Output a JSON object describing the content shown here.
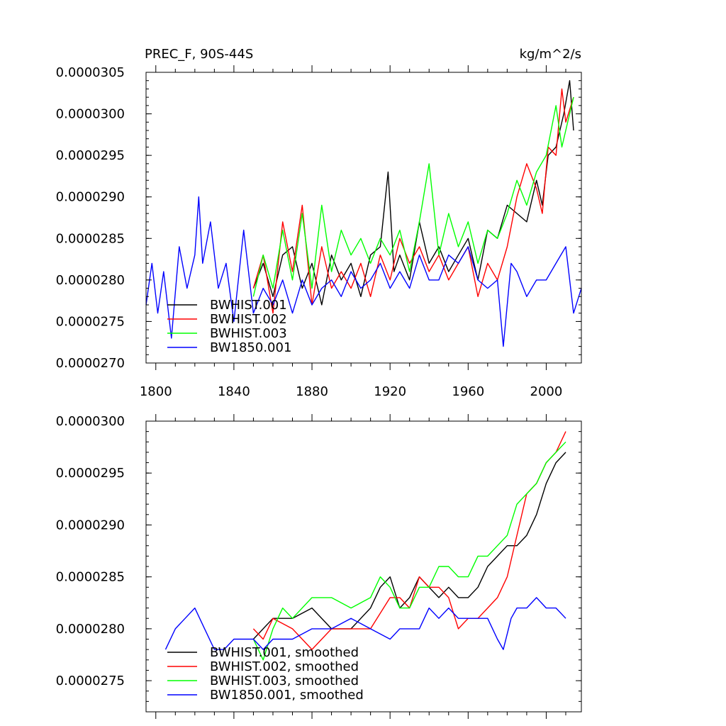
{
  "chart_data": [
    {
      "type": "line",
      "title": "PREC_F, 90S-44S",
      "units": "kg/m^2/s",
      "xlabel": "",
      "ylabel": "",
      "xlim": [
        1795,
        2018
      ],
      "ylim": [
        2.7e-05,
        3.05e-05
      ],
      "xticks": [
        1800,
        1840,
        1880,
        1920,
        1960,
        2000
      ],
      "xtick_labels": [
        "1800",
        "1840",
        "1880",
        "1920",
        "1960",
        "2000"
      ],
      "yticks": [
        2.7e-05,
        2.75e-05,
        2.8e-05,
        2.85e-05,
        2.9e-05,
        2.95e-05,
        3e-05,
        3.05e-05
      ],
      "ytick_labels": [
        "0.0000270",
        "0.0000275",
        "0.0000280",
        "0.0000285",
        "0.0000290",
        "0.0000295",
        "0.0000300",
        "0.0000305"
      ],
      "legend_position": "bottom-left",
      "grid": false,
      "series": [
        {
          "name": "BWHIST.001",
          "color": "#000000",
          "x": [
            1850,
            1855,
            1860,
            1865,
            1870,
            1875,
            1880,
            1885,
            1890,
            1895,
            1900,
            1905,
            1910,
            1915,
            1919,
            1922,
            1925,
            1930,
            1935,
            1940,
            1945,
            1950,
            1955,
            1960,
            1965,
            1970,
            1975,
            1980,
            1985,
            1990,
            1995,
            1998,
            2001,
            2005,
            2009,
            2012,
            2014
          ],
          "y": [
            2.79e-05,
            2.82e-05,
            2.78e-05,
            2.83e-05,
            2.84e-05,
            2.79e-05,
            2.82e-05,
            2.77e-05,
            2.83e-05,
            2.8e-05,
            2.82e-05,
            2.78e-05,
            2.83e-05,
            2.84e-05,
            2.93e-05,
            2.81e-05,
            2.83e-05,
            2.8e-05,
            2.87e-05,
            2.82e-05,
            2.84e-05,
            2.81e-05,
            2.83e-05,
            2.85e-05,
            2.8e-05,
            2.86e-05,
            2.85e-05,
            2.89e-05,
            2.88e-05,
            2.87e-05,
            2.92e-05,
            2.89e-05,
            2.95e-05,
            2.96e-05,
            3e-05,
            3.04e-05,
            2.98e-05
          ]
        },
        {
          "name": "BWHIST.002",
          "color": "#ff0000",
          "x": [
            1850,
            1855,
            1860,
            1865,
            1870,
            1875,
            1880,
            1885,
            1890,
            1895,
            1900,
            1905,
            1910,
            1915,
            1920,
            1925,
            1930,
            1935,
            1940,
            1945,
            1950,
            1955,
            1960,
            1965,
            1970,
            1975,
            1980,
            1985,
            1990,
            1995,
            1998,
            2001,
            2005,
            2008,
            2010,
            2014
          ],
          "y": [
            2.79e-05,
            2.83e-05,
            2.76e-05,
            2.87e-05,
            2.81e-05,
            2.89e-05,
            2.77e-05,
            2.84e-05,
            2.79e-05,
            2.81e-05,
            2.79e-05,
            2.82e-05,
            2.78e-05,
            2.83e-05,
            2.8e-05,
            2.85e-05,
            2.82e-05,
            2.84e-05,
            2.81e-05,
            2.83e-05,
            2.8e-05,
            2.82e-05,
            2.84e-05,
            2.78e-05,
            2.82e-05,
            2.8e-05,
            2.84e-05,
            2.9e-05,
            2.94e-05,
            2.91e-05,
            2.88e-05,
            2.96e-05,
            2.95e-05,
            3.03e-05,
            2.99e-05,
            3.02e-05
          ]
        },
        {
          "name": "BWHIST.003",
          "color": "#00ff00",
          "x": [
            1850,
            1855,
            1860,
            1865,
            1870,
            1875,
            1880,
            1885,
            1890,
            1895,
            1900,
            1905,
            1910,
            1915,
            1920,
            1925,
            1930,
            1935,
            1940,
            1945,
            1950,
            1955,
            1960,
            1965,
            1970,
            1975,
            1980,
            1985,
            1990,
            1995,
            2000,
            2005,
            2008,
            2011,
            2014
          ],
          "y": [
            2.78e-05,
            2.83e-05,
            2.79e-05,
            2.86e-05,
            2.8e-05,
            2.88e-05,
            2.79e-05,
            2.89e-05,
            2.81e-05,
            2.86e-05,
            2.83e-05,
            2.85e-05,
            2.82e-05,
            2.85e-05,
            2.83e-05,
            2.86e-05,
            2.81e-05,
            2.87e-05,
            2.94e-05,
            2.83e-05,
            2.88e-05,
            2.84e-05,
            2.87e-05,
            2.82e-05,
            2.86e-05,
            2.85e-05,
            2.88e-05,
            2.92e-05,
            2.89e-05,
            2.93e-05,
            2.95e-05,
            3.01e-05,
            2.96e-05,
            2.99e-05,
            3.02e-05
          ]
        },
        {
          "name": "BW1850.001",
          "color": "#0000ff",
          "x": [
            1795,
            1798,
            1801,
            1804,
            1808,
            1812,
            1816,
            1820,
            1822,
            1824,
            1828,
            1832,
            1836,
            1840,
            1845,
            1850,
            1855,
            1860,
            1865,
            1870,
            1875,
            1880,
            1885,
            1890,
            1895,
            1900,
            1905,
            1910,
            1915,
            1920,
            1925,
            1930,
            1935,
            1940,
            1945,
            1950,
            1955,
            1960,
            1965,
            1970,
            1975,
            1978,
            1982,
            1985,
            1990,
            1995,
            2000,
            2005,
            2010,
            2014,
            2018
          ],
          "y": [
            2.77e-05,
            2.82e-05,
            2.76e-05,
            2.81e-05,
            2.73e-05,
            2.84e-05,
            2.79e-05,
            2.83e-05,
            2.9e-05,
            2.82e-05,
            2.87e-05,
            2.79e-05,
            2.82e-05,
            2.75e-05,
            2.86e-05,
            2.76e-05,
            2.79e-05,
            2.77e-05,
            2.8e-05,
            2.76e-05,
            2.8e-05,
            2.77e-05,
            2.79e-05,
            2.8e-05,
            2.78e-05,
            2.81e-05,
            2.79e-05,
            2.8e-05,
            2.82e-05,
            2.79e-05,
            2.81e-05,
            2.79e-05,
            2.83e-05,
            2.8e-05,
            2.8e-05,
            2.83e-05,
            2.82e-05,
            2.84e-05,
            2.8e-05,
            2.79e-05,
            2.8e-05,
            2.72e-05,
            2.82e-05,
            2.81e-05,
            2.78e-05,
            2.8e-05,
            2.8e-05,
            2.82e-05,
            2.84e-05,
            2.76e-05,
            2.79e-05
          ]
        }
      ]
    },
    {
      "type": "line",
      "title": "",
      "xlabel": "",
      "ylabel": "",
      "xlim": [
        1795,
        2018
      ],
      "ylim": [
        2.72e-05,
        3e-05
      ],
      "xticks": [
        1800,
        1840,
        1880,
        1920,
        1960,
        2000
      ],
      "xtick_labels": [],
      "yticks": [
        2.75e-05,
        2.8e-05,
        2.85e-05,
        2.9e-05,
        2.95e-05,
        3e-05
      ],
      "ytick_labels": [
        "0.0000275",
        "0.0000280",
        "0.0000285",
        "0.0000290",
        "0.0000295",
        "0.0000300"
      ],
      "legend_position": "bottom-left",
      "grid": false,
      "series": [
        {
          "name": "BWHIST.001, smoothed",
          "color": "#000000",
          "x": [
            1850,
            1860,
            1870,
            1880,
            1890,
            1900,
            1910,
            1915,
            1920,
            1925,
            1930,
            1935,
            1940,
            1945,
            1950,
            1955,
            1960,
            1965,
            1970,
            1975,
            1980,
            1985,
            1990,
            1995,
            2000,
            2005,
            2010
          ],
          "y": [
            2.79e-05,
            2.81e-05,
            2.81e-05,
            2.82e-05,
            2.8e-05,
            2.8e-05,
            2.82e-05,
            2.84e-05,
            2.85e-05,
            2.82e-05,
            2.83e-05,
            2.85e-05,
            2.84e-05,
            2.83e-05,
            2.84e-05,
            2.83e-05,
            2.83e-05,
            2.84e-05,
            2.86e-05,
            2.87e-05,
            2.88e-05,
            2.88e-05,
            2.89e-05,
            2.91e-05,
            2.94e-05,
            2.96e-05,
            2.97e-05
          ]
        },
        {
          "name": "BWHIST.002, smoothed",
          "color": "#ff0000",
          "x": [
            1850,
            1855,
            1860,
            1870,
            1880,
            1890,
            1900,
            1910,
            1920,
            1925,
            1930,
            1935,
            1940,
            1945,
            1950,
            1955,
            1960,
            1965,
            1970,
            1975,
            1980,
            1985,
            1990,
            1995,
            2000,
            2005,
            2010
          ],
          "y": [
            2.8e-05,
            2.79e-05,
            2.81e-05,
            2.8e-05,
            2.78e-05,
            2.8e-05,
            2.8e-05,
            2.8e-05,
            2.83e-05,
            2.83e-05,
            2.82e-05,
            2.85e-05,
            2.84e-05,
            2.84e-05,
            2.83e-05,
            2.8e-05,
            2.81e-05,
            2.81e-05,
            2.82e-05,
            2.83e-05,
            2.85e-05,
            2.89e-05,
            2.93e-05,
            2.94e-05,
            2.96e-05,
            2.97e-05,
            2.99e-05
          ]
        },
        {
          "name": "BWHIST.003, smoothed",
          "color": "#00ff00",
          "x": [
            1850,
            1855,
            1860,
            1865,
            1870,
            1880,
            1890,
            1900,
            1910,
            1915,
            1920,
            1925,
            1930,
            1935,
            1940,
            1945,
            1950,
            1955,
            1960,
            1965,
            1970,
            1975,
            1980,
            1985,
            1990,
            1995,
            2000,
            2005,
            2010
          ],
          "y": [
            2.79e-05,
            2.77e-05,
            2.8e-05,
            2.82e-05,
            2.81e-05,
            2.83e-05,
            2.83e-05,
            2.82e-05,
            2.83e-05,
            2.85e-05,
            2.84e-05,
            2.82e-05,
            2.82e-05,
            2.84e-05,
            2.84e-05,
            2.86e-05,
            2.86e-05,
            2.85e-05,
            2.85e-05,
            2.87e-05,
            2.87e-05,
            2.88e-05,
            2.89e-05,
            2.92e-05,
            2.93e-05,
            2.94e-05,
            2.96e-05,
            2.97e-05,
            2.98e-05
          ]
        },
        {
          "name": "BW1850.001, smoothed",
          "color": "#0000ff",
          "x": [
            1805,
            1810,
            1815,
            1820,
            1825,
            1830,
            1835,
            1840,
            1845,
            1850,
            1855,
            1860,
            1870,
            1880,
            1890,
            1900,
            1910,
            1920,
            1925,
            1930,
            1935,
            1940,
            1945,
            1950,
            1955,
            1960,
            1965,
            1970,
            1975,
            1978,
            1982,
            1985,
            1990,
            1995,
            2000,
            2005,
            2010
          ],
          "y": [
            2.78e-05,
            2.8e-05,
            2.81e-05,
            2.82e-05,
            2.8e-05,
            2.78e-05,
            2.78e-05,
            2.79e-05,
            2.79e-05,
            2.79e-05,
            2.78e-05,
            2.79e-05,
            2.79e-05,
            2.8e-05,
            2.8e-05,
            2.81e-05,
            2.8e-05,
            2.79e-05,
            2.8e-05,
            2.8e-05,
            2.8e-05,
            2.82e-05,
            2.81e-05,
            2.82e-05,
            2.81e-05,
            2.81e-05,
            2.81e-05,
            2.81e-05,
            2.79e-05,
            2.78e-05,
            2.81e-05,
            2.82e-05,
            2.82e-05,
            2.83e-05,
            2.82e-05,
            2.82e-05,
            2.81e-05
          ]
        }
      ]
    }
  ]
}
